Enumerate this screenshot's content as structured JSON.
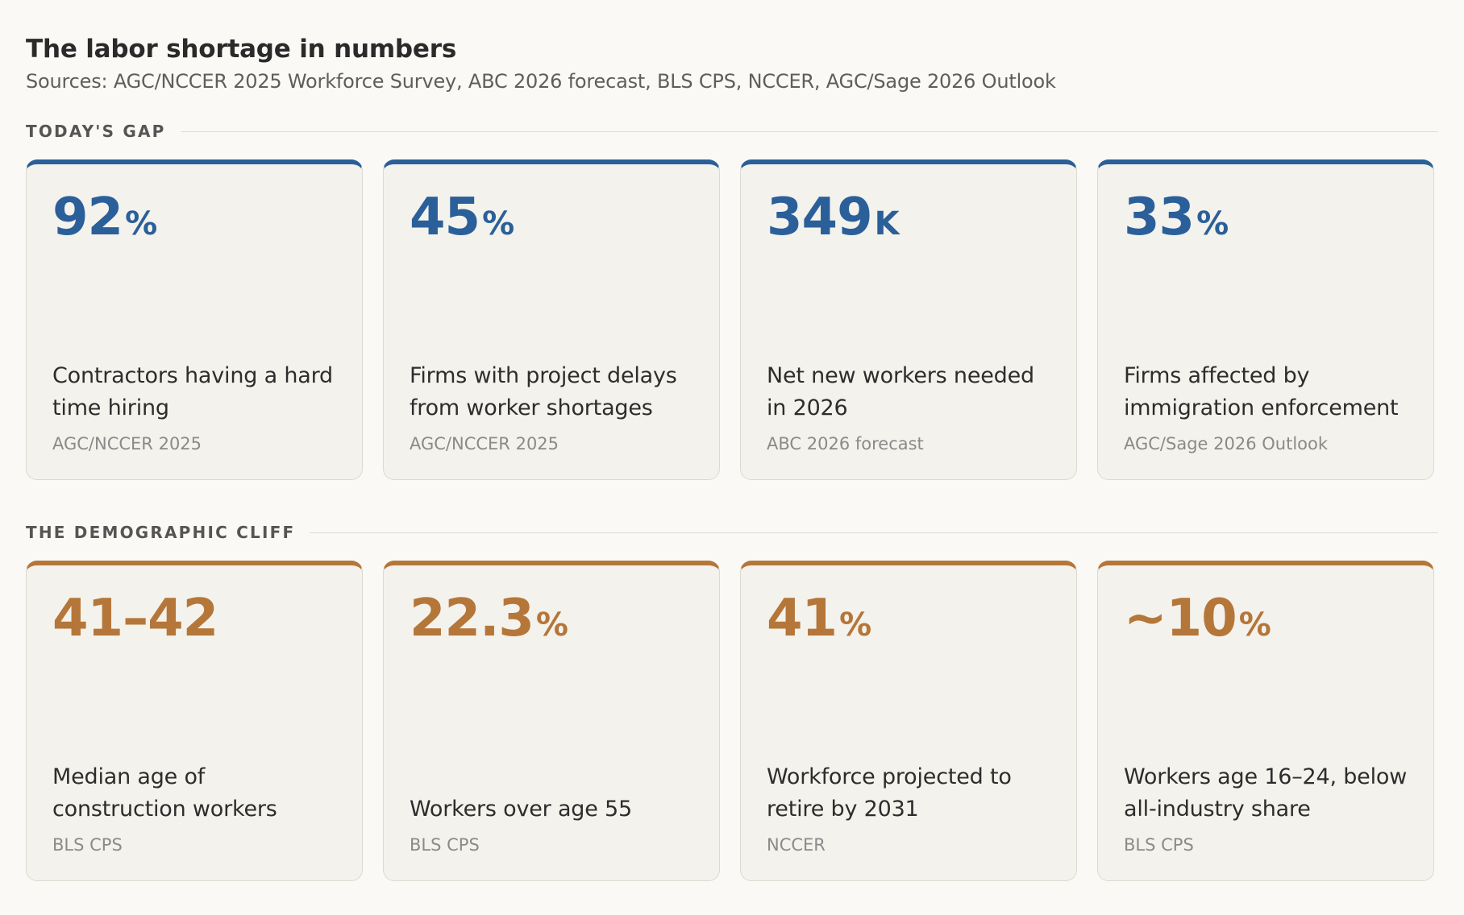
{
  "header": {
    "title": "The labor shortage in numbers",
    "subtitle": "Sources: AGC/NCCER 2025 Workforce Survey, ABC 2026 forecast, BLS CPS, NCCER, AGC/Sage 2026 Outlook"
  },
  "colors": {
    "gap_accent": "#2a5f9a",
    "cliff_accent": "#b5763a"
  },
  "sections": [
    {
      "label": "TODAY'S GAP",
      "cards": [
        {
          "value": "92",
          "unit": "%",
          "desc": "Contractors having a hard time hiring",
          "source": "AGC/NCCER 2025"
        },
        {
          "value": "45",
          "unit": "%",
          "desc": "Firms with project delays from worker shortages",
          "source": "AGC/NCCER 2025"
        },
        {
          "value": "349",
          "unit": "K",
          "desc": "Net new workers needed in 2026",
          "source": "ABC 2026 forecast"
        },
        {
          "value": "33",
          "unit": "%",
          "desc": "Firms affected by immigration enforcement",
          "source": "AGC/Sage 2026 Outlook"
        }
      ]
    },
    {
      "label": "THE DEMOGRAPHIC CLIFF",
      "cards": [
        {
          "value": "41–42",
          "unit": "",
          "desc": "Median age of construction workers",
          "source": "BLS CPS"
        },
        {
          "value": "22.3",
          "unit": "%",
          "desc": "Workers over age 55",
          "source": "BLS CPS"
        },
        {
          "value": "41",
          "unit": "%",
          "desc": "Workforce projected to retire by 2031",
          "source": "NCCER"
        },
        {
          "value": "~10",
          "unit": "%",
          "desc": "Workers age 16–24, below all-industry share",
          "source": "BLS CPS"
        }
      ]
    }
  ]
}
